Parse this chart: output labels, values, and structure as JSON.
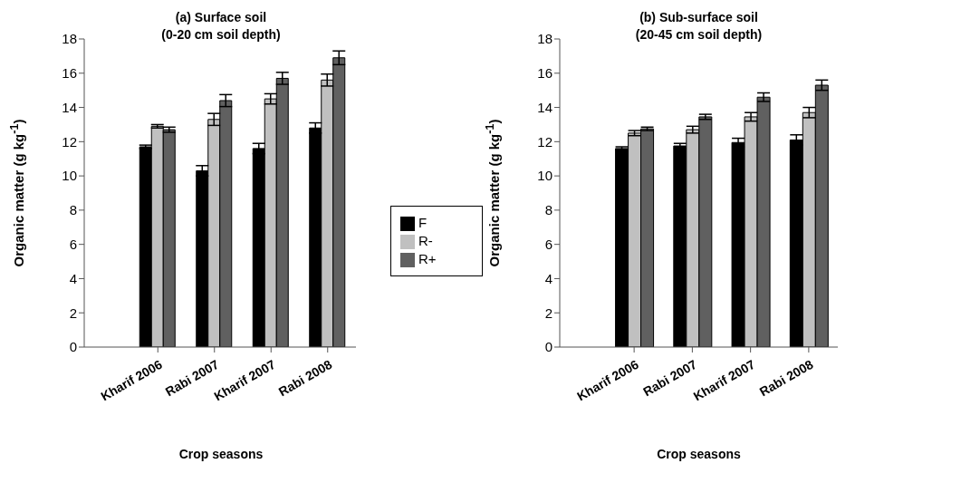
{
  "chart_data": [
    {
      "type": "bar",
      "title": "(a) Surface soil",
      "subtitle": "(0-20 cm soil depth)",
      "xlabel": "Crop seasons",
      "ylabel": "Organic matter (g kg$^{-1}$)",
      "categories": [
        "Kharif 2006",
        "Rabi 2007",
        "Kharif 2007",
        "Rabi 2008"
      ],
      "ylim": [
        0,
        18
      ],
      "yticks": [
        0,
        2,
        4,
        6,
        8,
        10,
        12,
        14,
        16,
        18
      ],
      "grid": false,
      "legend": "right",
      "series": [
        {
          "name": "F",
          "color": "#000000",
          "values": [
            11.7,
            10.3,
            11.6,
            12.8
          ],
          "errors": [
            0.1,
            0.3,
            0.3,
            0.3
          ]
        },
        {
          "name": "R-",
          "color": "#c0c0c0",
          "values": [
            12.9,
            13.3,
            14.5,
            15.6
          ],
          "errors": [
            0.1,
            0.35,
            0.3,
            0.35
          ]
        },
        {
          "name": "R+",
          "color": "#606060",
          "values": [
            12.7,
            14.4,
            15.7,
            16.9
          ],
          "errors": [
            0.15,
            0.35,
            0.35,
            0.4
          ]
        }
      ]
    },
    {
      "type": "bar",
      "title": "(b) Sub-surface soil",
      "subtitle": "(20-45 cm soil depth)",
      "xlabel": "Crop seasons",
      "ylabel": "Organic matter (g kg$^{-1}$)",
      "categories": [
        "Kharif 2006",
        "Rabi 2007",
        "Kharif 2007",
        "Rabi 2008"
      ],
      "ylim": [
        0,
        18
      ],
      "yticks": [
        0,
        2,
        4,
        6,
        8,
        10,
        12,
        14,
        16,
        18
      ],
      "grid": false,
      "legend": false,
      "series": [
        {
          "color": "#000000",
          "values": [
            11.6,
            11.75,
            11.95,
            12.1
          ],
          "errors": [
            0.1,
            0.15,
            0.25,
            0.3
          ]
        },
        {
          "color": "#c0c0c0",
          "values": [
            12.5,
            12.7,
            13.45,
            13.7
          ],
          "errors": [
            0.15,
            0.2,
            0.25,
            0.3
          ]
        },
        {
          "color": "#606060",
          "values": [
            12.75,
            13.45,
            14.6,
            15.3
          ],
          "errors": [
            0.1,
            0.15,
            0.25,
            0.3
          ]
        }
      ]
    }
  ]
}
